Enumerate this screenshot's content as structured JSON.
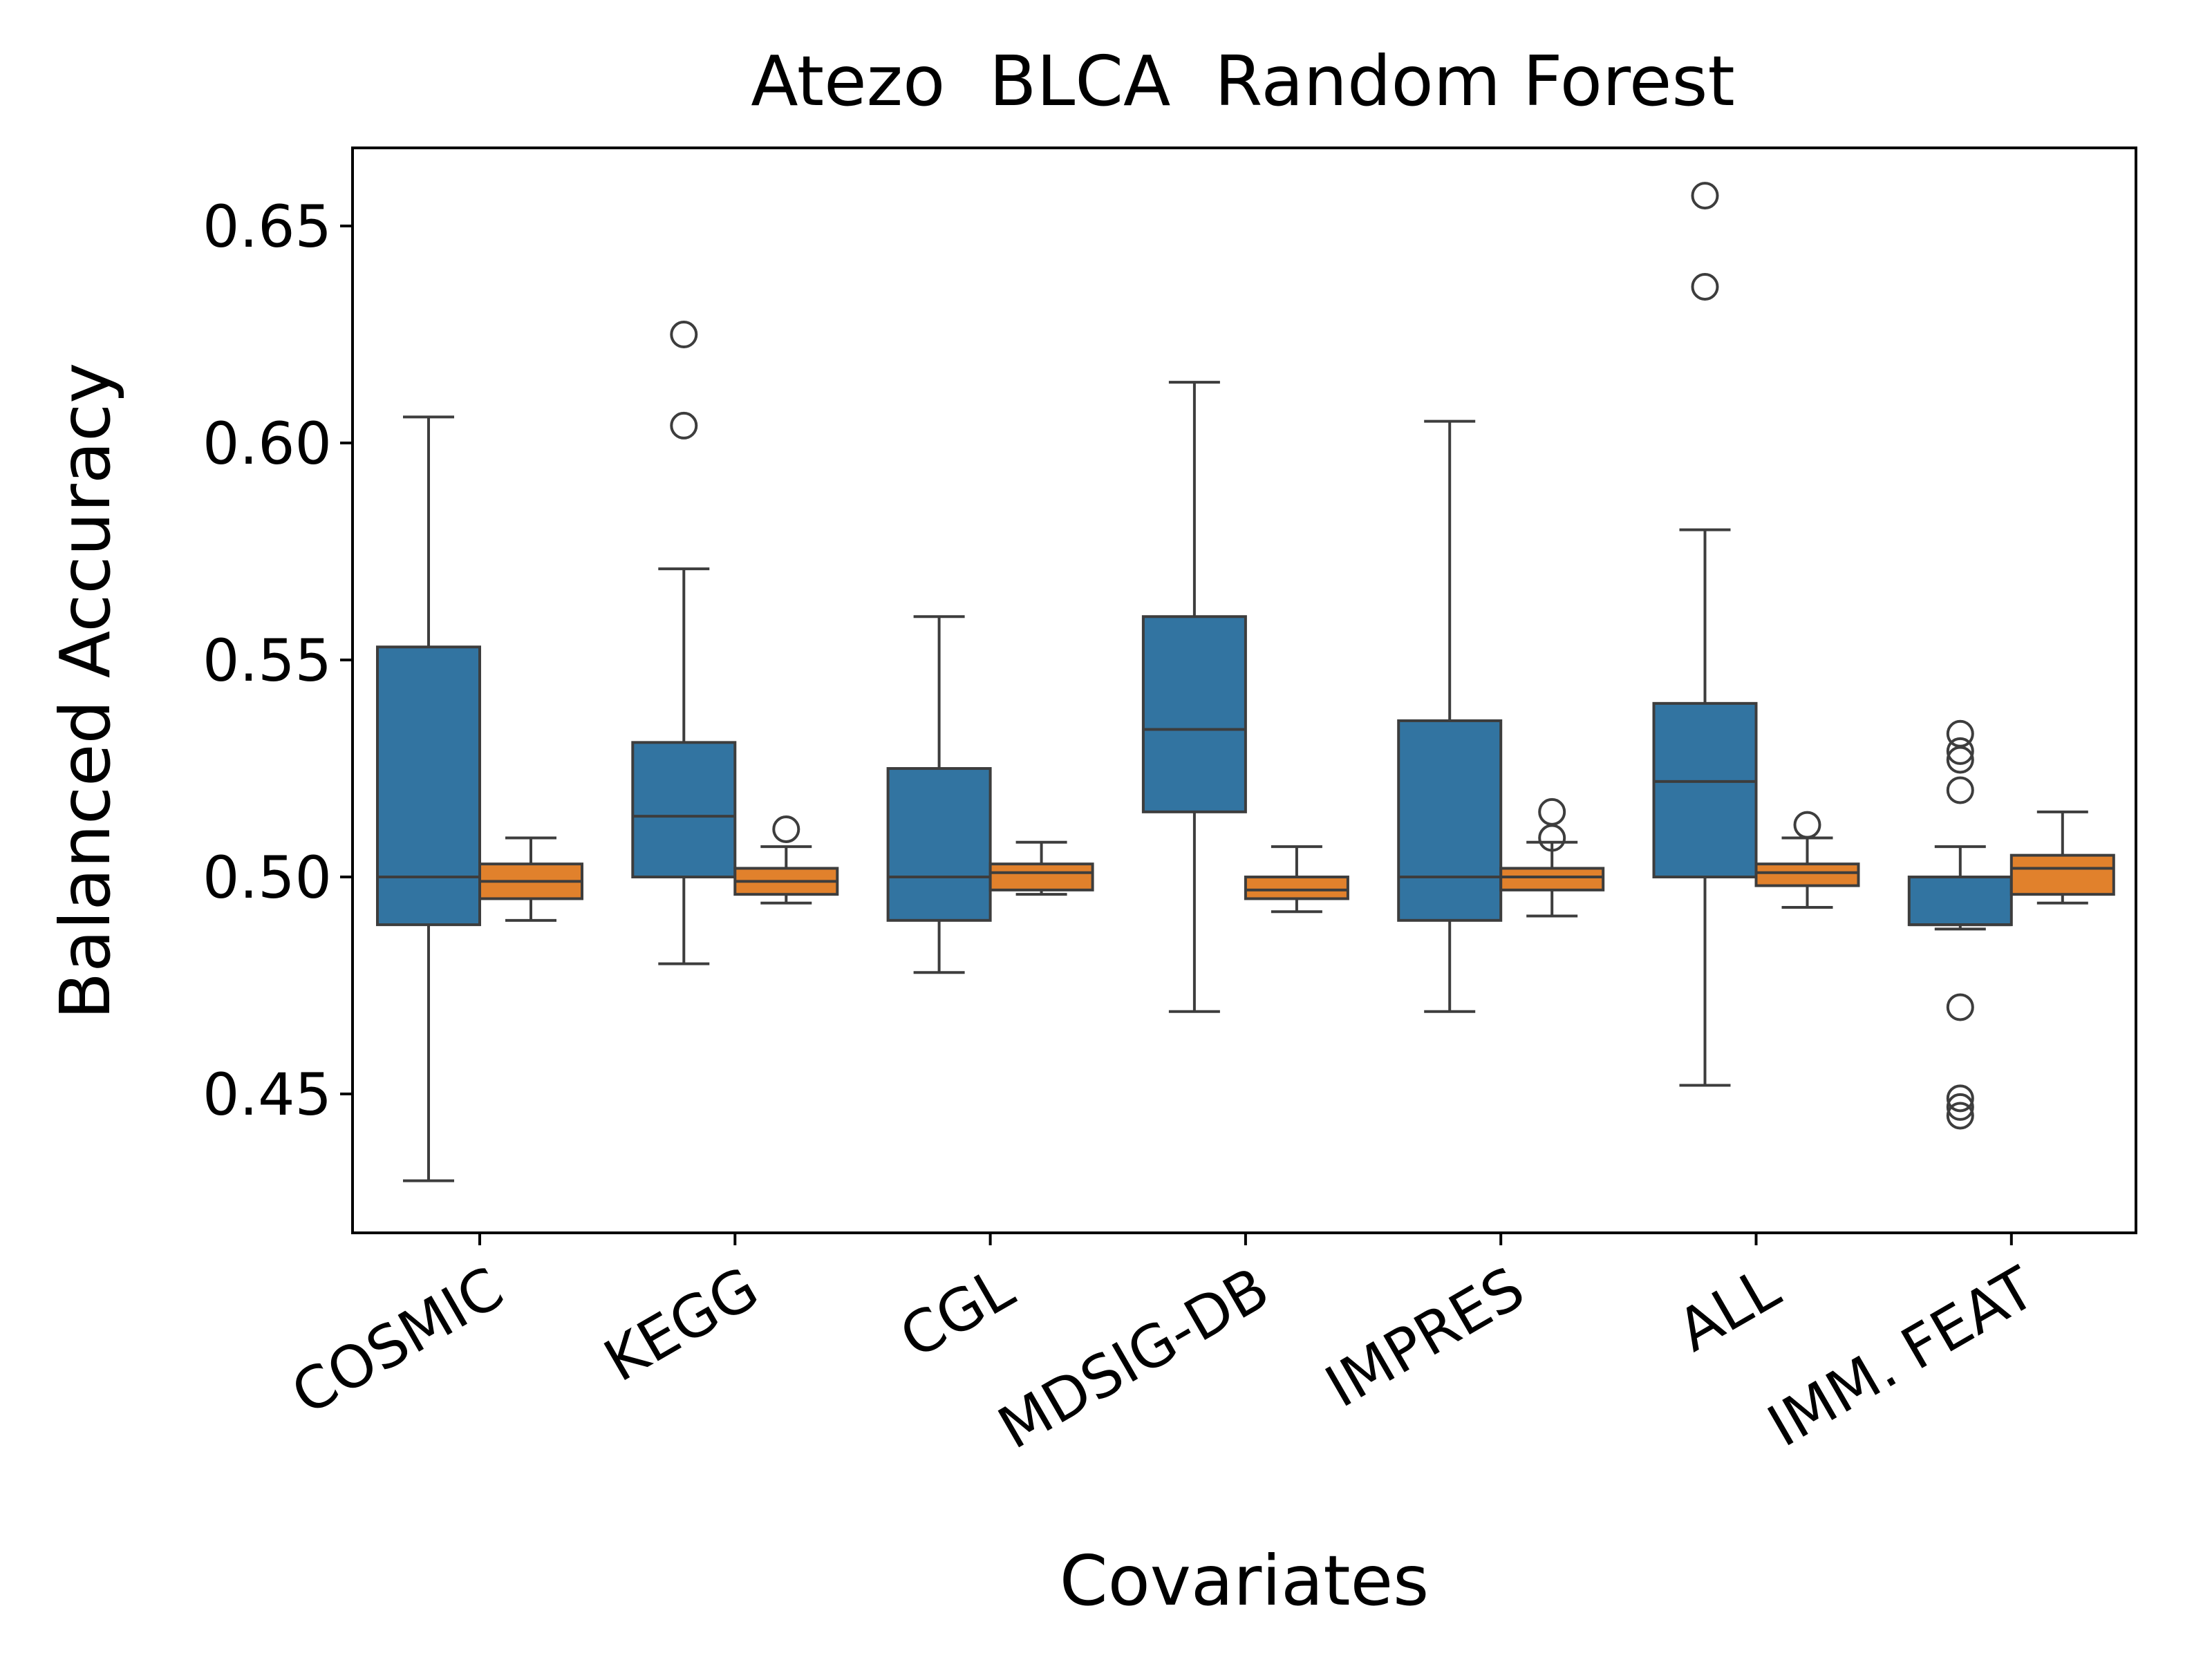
{
  "chart_data": {
    "type": "box",
    "title": "Atezo  BLCA  Random Forest",
    "xlabel": "Covariates",
    "ylabel": "Balanced Accuracy",
    "ylim": [
      0.418,
      0.668
    ],
    "yticks": [
      0.45,
      0.5,
      0.55,
      0.6,
      0.65
    ],
    "ytick_labels": [
      "0.45",
      "0.50",
      "0.55",
      "0.60",
      "0.65"
    ],
    "categories": [
      "COSMIC",
      "KEGG",
      "CGL",
      "MDSIG-DB",
      "IMPRES",
      "ALL",
      "IMM. FEAT"
    ],
    "grid": false,
    "legend": null,
    "series": [
      {
        "color": "#3274a1",
        "boxes": [
          {
            "whislo": 0.43,
            "q1": 0.489,
            "med": 0.5,
            "q3": 0.553,
            "whishi": 0.606,
            "fliers": []
          },
          {
            "whislo": 0.48,
            "q1": 0.5,
            "med": 0.514,
            "q3": 0.531,
            "whishi": 0.571,
            "fliers": [
              0.604,
              0.625
            ]
          },
          {
            "whislo": 0.478,
            "q1": 0.49,
            "med": 0.5,
            "q3": 0.525,
            "whishi": 0.56,
            "fliers": []
          },
          {
            "whislo": 0.469,
            "q1": 0.515,
            "med": 0.534,
            "q3": 0.56,
            "whishi": 0.614,
            "fliers": []
          },
          {
            "whislo": 0.469,
            "q1": 0.49,
            "med": 0.5,
            "q3": 0.536,
            "whishi": 0.605,
            "fliers": []
          },
          {
            "whislo": 0.452,
            "q1": 0.5,
            "med": 0.522,
            "q3": 0.54,
            "whishi": 0.58,
            "fliers": [
              0.636,
              0.657
            ]
          },
          {
            "whislo": 0.488,
            "q1": 0.489,
            "med": 0.489,
            "q3": 0.5,
            "whishi": 0.507,
            "fliers": [
              0.533,
              0.529,
              0.527,
              0.52,
              0.47,
              0.449,
              0.447,
              0.445
            ]
          }
        ]
      },
      {
        "color": "#e1812c",
        "boxes": [
          {
            "whislo": 0.49,
            "q1": 0.495,
            "med": 0.499,
            "q3": 0.503,
            "whishi": 0.509,
            "fliers": []
          },
          {
            "whislo": 0.494,
            "q1": 0.496,
            "med": 0.499,
            "q3": 0.502,
            "whishi": 0.507,
            "fliers": [
              0.511
            ]
          },
          {
            "whislo": 0.496,
            "q1": 0.497,
            "med": 0.501,
            "q3": 0.503,
            "whishi": 0.508,
            "fliers": []
          },
          {
            "whislo": 0.492,
            "q1": 0.495,
            "med": 0.497,
            "q3": 0.5,
            "whishi": 0.507,
            "fliers": []
          },
          {
            "whislo": 0.491,
            "q1": 0.497,
            "med": 0.5,
            "q3": 0.502,
            "whishi": 0.508,
            "fliers": [
              0.509,
              0.515
            ]
          },
          {
            "whislo": 0.493,
            "q1": 0.498,
            "med": 0.501,
            "q3": 0.503,
            "whishi": 0.509,
            "fliers": [
              0.512
            ]
          },
          {
            "whislo": 0.494,
            "q1": 0.496,
            "med": 0.502,
            "q3": 0.505,
            "whishi": 0.515,
            "fliers": []
          }
        ]
      }
    ]
  }
}
